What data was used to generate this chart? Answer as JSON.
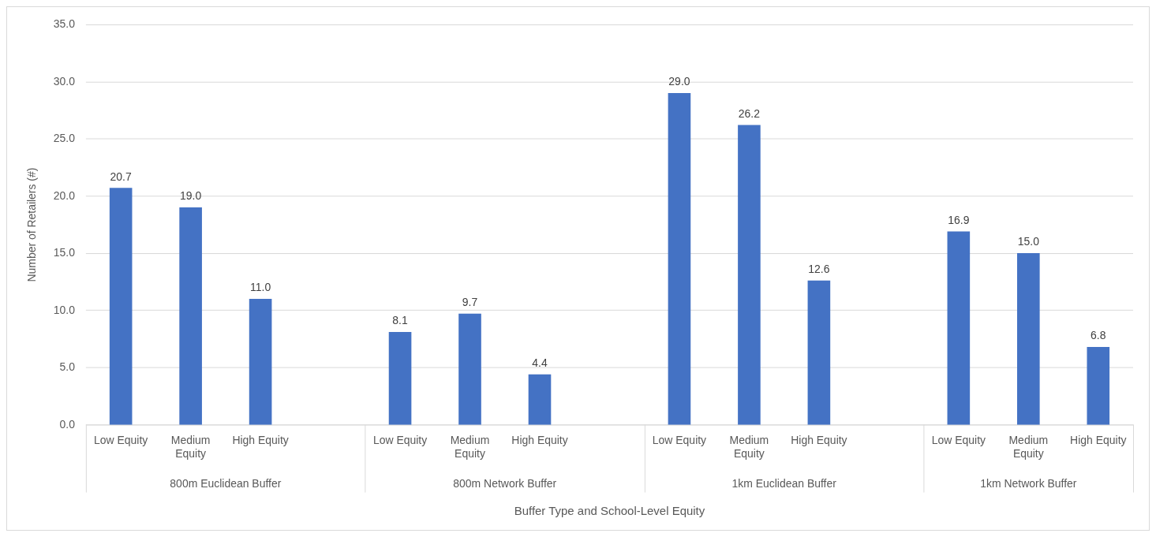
{
  "chart_data": {
    "type": "bar",
    "xlabel": "Buffer Type and School-Level Equity",
    "ylabel": "Number of Retailers (#)",
    "categories": [
      "Low Equity",
      "Medium Equity",
      "High Equity",
      null,
      "Low Equity",
      "Medium Equity",
      "High Equity",
      null,
      "Low Equity",
      "Medium Equity",
      "High Equity",
      null,
      "Low Equity",
      "Medium Equity",
      "High Equity"
    ],
    "values": [
      20.7,
      19.0,
      11.0,
      null,
      8.1,
      9.7,
      4.4,
      null,
      29.0,
      26.2,
      12.6,
      null,
      16.9,
      15.0,
      6.8
    ],
    "value_labels": [
      "20.7",
      "19.0",
      "11.0",
      null,
      "8.1",
      "9.7",
      "4.4",
      null,
      "29.0",
      "26.2",
      "12.6",
      null,
      "16.9",
      "15.0",
      "6.8"
    ],
    "color": "#4472c4",
    "annotations": [
      "800m Euclidean Buffer",
      "800m Network Buffer",
      "1km Euclidean Buffer",
      "1km Network Buffer"
    ],
    "ylim": [
      0,
      35
    ],
    "yticks": [
      {
        "value": 0,
        "label": "0.0"
      },
      {
        "value": 5,
        "label": "5.0"
      },
      {
        "value": 10,
        "label": "10.0"
      },
      {
        "value": 15,
        "label": "15.0"
      },
      {
        "value": 20,
        "label": "20.0"
      },
      {
        "value": 25,
        "label": "25.0"
      },
      {
        "value": 30,
        "label": "30.0"
      },
      {
        "value": 35,
        "label": "35.0"
      }
    ],
    "grid": "y",
    "legend": false
  }
}
